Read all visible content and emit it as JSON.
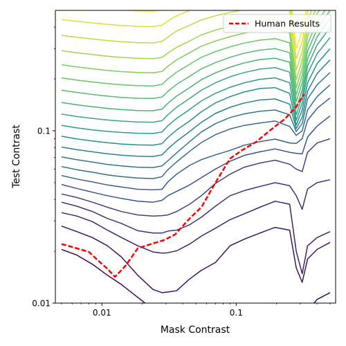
{
  "chart_data": {
    "type": "line",
    "xlabel": "Mask Contrast",
    "ylabel": "Test Contrast",
    "xscale": "log",
    "yscale": "log",
    "xlim": [
      0.0045,
      0.55
    ],
    "ylim": [
      0.01,
      0.5
    ],
    "x_ticks": [
      {
        "value": 0.01,
        "label": "0.01"
      },
      {
        "value": 0.1,
        "label": "0.1"
      }
    ],
    "y_ticks": [
      {
        "value": 0.01,
        "label": "0.01"
      },
      {
        "value": 0.1,
        "label": "0.1"
      }
    ],
    "grid": false,
    "legend": {
      "position": "top-right",
      "entries": [
        "Human Results"
      ]
    },
    "mask_x": [
      0.005,
      0.0065,
      0.0085,
      0.011,
      0.014,
      0.0185,
      0.024,
      0.028,
      0.031,
      0.036,
      0.045,
      0.055,
      0.07,
      0.09,
      0.115,
      0.15,
      0.195,
      0.25,
      0.28,
      0.31,
      0.34,
      0.4,
      0.5
    ],
    "contour_levels": [
      [
        0.0205,
        0.019,
        0.0168,
        0.0145,
        0.0128,
        0.0108,
        0.0092,
        0.0084,
        0.0074,
        0.0072,
        0.0066,
        0.006,
        0.0066,
        0.0082,
        0.0092,
        0.0095,
        0.0098,
        0.0095,
        0.0074,
        0.0068,
        0.009,
        0.0105,
        0.0115
      ],
      [
        0.028,
        0.026,
        0.024,
        0.0215,
        0.0185,
        0.0145,
        0.012,
        0.0115,
        0.0116,
        0.0118,
        0.0138,
        0.0155,
        0.0172,
        0.0215,
        0.0235,
        0.0255,
        0.0275,
        0.0265,
        0.016,
        0.0132,
        0.018,
        0.0205,
        0.0225
      ],
      [
        0.0335,
        0.032,
        0.0297,
        0.0265,
        0.024,
        0.0215,
        0.0198,
        0.0195,
        0.0196,
        0.0201,
        0.022,
        0.0245,
        0.0272,
        0.0305,
        0.033,
        0.036,
        0.039,
        0.0375,
        0.02,
        0.0148,
        0.0215,
        0.024,
        0.026
      ],
      [
        0.0385,
        0.0365,
        0.034,
        0.031,
        0.029,
        0.0263,
        0.0255,
        0.0255,
        0.0262,
        0.0265,
        0.0285,
        0.0315,
        0.0365,
        0.042,
        0.045,
        0.0475,
        0.05,
        0.048,
        0.042,
        0.035,
        0.046,
        0.05,
        0.052
      ],
      [
        0.043,
        0.041,
        0.0385,
        0.036,
        0.034,
        0.0325,
        0.032,
        0.0322,
        0.0325,
        0.034,
        0.0375,
        0.042,
        0.0495,
        0.056,
        0.0615,
        0.065,
        0.0675,
        0.064,
        0.06,
        0.058,
        0.075,
        0.085,
        0.09
      ],
      [
        0.0488,
        0.0463,
        0.044,
        0.042,
        0.0405,
        0.039,
        0.0385,
        0.0395,
        0.042,
        0.0445,
        0.0485,
        0.0535,
        0.06,
        0.0665,
        0.072,
        0.0755,
        0.0785,
        0.075,
        0.074,
        0.0735,
        0.092,
        0.1065,
        0.122
      ],
      [
        0.055,
        0.0525,
        0.0505,
        0.0485,
        0.0472,
        0.0458,
        0.0455,
        0.0458,
        0.0505,
        0.056,
        0.063,
        0.068,
        0.0725,
        0.077,
        0.0825,
        0.0865,
        0.0895,
        0.085,
        0.0845,
        0.09,
        0.115,
        0.135,
        0.155
      ],
      [
        0.062,
        0.0595,
        0.0575,
        0.0555,
        0.0542,
        0.0532,
        0.0528,
        0.0542,
        0.0595,
        0.066,
        0.076,
        0.0855,
        0.095,
        0.1025,
        0.1075,
        0.111,
        0.114,
        0.106,
        0.094,
        0.1,
        0.132,
        0.158,
        0.185
      ],
      [
        0.0705,
        0.068,
        0.0658,
        0.0638,
        0.0625,
        0.0615,
        0.0612,
        0.0625,
        0.067,
        0.0745,
        0.0865,
        0.0985,
        0.11,
        0.1195,
        0.1255,
        0.13,
        0.132,
        0.124,
        0.099,
        0.11,
        0.153,
        0.185,
        0.218
      ],
      [
        0.0805,
        0.0778,
        0.0755,
        0.0735,
        0.0722,
        0.0712,
        0.071,
        0.0725,
        0.0785,
        0.087,
        0.099,
        0.112,
        0.126,
        0.137,
        0.145,
        0.151,
        0.153,
        0.143,
        0.103,
        0.12,
        0.17,
        0.215,
        0.258
      ],
      [
        0.093,
        0.0898,
        0.0872,
        0.0852,
        0.0838,
        0.0828,
        0.0825,
        0.0842,
        0.0915,
        0.101,
        0.114,
        0.129,
        0.145,
        0.158,
        0.168,
        0.176,
        0.178,
        0.165,
        0.108,
        0.132,
        0.19,
        0.245,
        0.3
      ],
      [
        0.1075,
        0.104,
        0.1012,
        0.0992,
        0.0978,
        0.0968,
        0.0965,
        0.0985,
        0.107,
        0.118,
        0.133,
        0.149,
        0.165,
        0.179,
        0.19,
        0.199,
        0.203,
        0.19,
        0.115,
        0.145,
        0.215,
        0.28,
        0.348
      ],
      [
        0.125,
        0.121,
        0.118,
        0.1155,
        0.1138,
        0.1125,
        0.1122,
        0.1145,
        0.124,
        0.137,
        0.154,
        0.172,
        0.19,
        0.206,
        0.218,
        0.228,
        0.233,
        0.219,
        0.124,
        0.158,
        0.238,
        0.315,
        0.398
      ],
      [
        0.146,
        0.1415,
        0.138,
        0.135,
        0.1328,
        0.1312,
        0.1308,
        0.1335,
        0.1445,
        0.159,
        0.178,
        0.198,
        0.217,
        0.234,
        0.248,
        0.259,
        0.264,
        0.25,
        0.135,
        0.172,
        0.262,
        0.35,
        0.45
      ],
      [
        0.172,
        0.167,
        0.1625,
        0.159,
        0.1562,
        0.1545,
        0.154,
        0.157,
        0.1695,
        0.186,
        0.207,
        0.229,
        0.249,
        0.267,
        0.282,
        0.294,
        0.3,
        0.284,
        0.148,
        0.19,
        0.29,
        0.39,
        0.5
      ],
      [
        0.203,
        0.197,
        0.192,
        0.188,
        0.1848,
        0.1828,
        0.1822,
        0.186,
        0.2,
        0.219,
        0.243,
        0.267,
        0.288,
        0.307,
        0.323,
        0.336,
        0.343,
        0.324,
        0.162,
        0.21,
        0.32,
        0.43,
        0.55
      ],
      [
        0.242,
        0.235,
        0.229,
        0.224,
        0.2205,
        0.218,
        0.2172,
        0.221,
        0.237,
        0.258,
        0.284,
        0.31,
        0.332,
        0.352,
        0.369,
        0.383,
        0.391,
        0.37,
        0.178,
        0.232,
        0.355,
        0.48,
        0.6
      ],
      [
        0.292,
        0.284,
        0.277,
        0.271,
        0.2665,
        0.2635,
        0.2625,
        0.2665,
        0.283,
        0.305,
        0.332,
        0.36,
        0.384,
        0.404,
        0.42,
        0.434,
        0.443,
        0.42,
        0.198,
        0.258,
        0.395,
        0.53,
        0.66
      ],
      [
        0.358,
        0.349,
        0.341,
        0.334,
        0.329,
        0.325,
        0.3238,
        0.33,
        0.35,
        0.38,
        0.41,
        0.44,
        0.465,
        0.487,
        0.505,
        0.52,
        0.53,
        0.5,
        0.225,
        0.29,
        0.44,
        0.59,
        0.73
      ],
      [
        0.442,
        0.432,
        0.423,
        0.415,
        0.409,
        0.404,
        0.4025,
        0.41,
        0.435,
        0.465,
        0.5,
        0.53,
        0.556,
        0.58,
        0.6,
        0.615,
        0.625,
        0.59,
        0.26,
        0.33,
        0.49,
        0.65,
        0.8
      ],
      [
        0.54,
        0.53,
        0.52,
        0.51,
        0.502,
        0.497,
        0.495,
        0.502,
        0.53,
        0.56,
        0.59,
        0.62,
        0.65,
        0.67,
        0.69,
        0.7,
        0.71,
        0.67,
        0.3,
        0.38,
        0.55,
        0.72,
        0.88
      ]
    ],
    "series": [
      {
        "name": "Human Results",
        "color": "#ff0000",
        "style": "dashed",
        "x": [
          0.005,
          0.006,
          0.008,
          0.0095,
          0.011,
          0.0125,
          0.015,
          0.0185,
          0.024,
          0.029,
          0.035,
          0.045,
          0.055,
          0.07,
          0.09,
          0.11,
          0.14,
          0.18,
          0.23,
          0.28,
          0.32
        ],
        "y": [
          0.022,
          0.0212,
          0.0198,
          0.0175,
          0.0158,
          0.0142,
          0.0165,
          0.0208,
          0.0222,
          0.0232,
          0.025,
          0.031,
          0.036,
          0.05,
          0.069,
          0.077,
          0.086,
          0.101,
          0.117,
          0.138,
          0.163
        ]
      }
    ]
  }
}
